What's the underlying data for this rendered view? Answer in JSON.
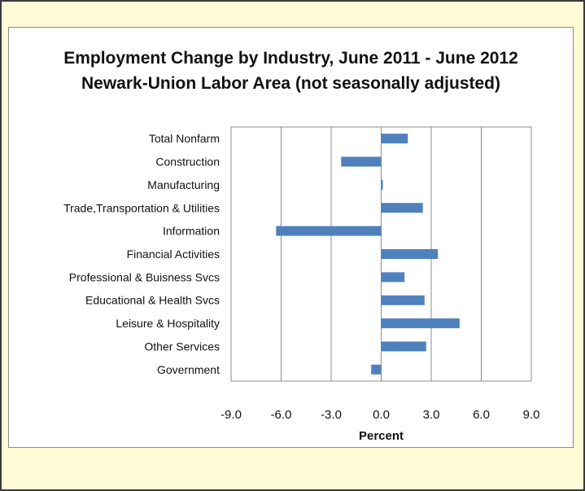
{
  "chart_data": {
    "type": "bar",
    "orientation": "horizontal",
    "title": "Employment Change by Industry, June 2011 - June 2012",
    "subtitle": "Newark-Union Labor Area (not seasonally adjusted)",
    "xlabel": "Percent",
    "ylabel": "",
    "xlim": [
      -9.0,
      9.0
    ],
    "xticks": [
      "-9.0",
      "-6.0",
      "-3.0",
      "0.0",
      "3.0",
      "6.0",
      "9.0"
    ],
    "xtick_values": [
      -9,
      -6,
      -3,
      0,
      3,
      6,
      9
    ],
    "grid": true,
    "legend": false,
    "bar_color": "#4f81bd",
    "categories": [
      "Total Nonfarm",
      "Construction",
      "Manufacturing",
      "Trade,Transportation & Utilities",
      "Information",
      "Financial Activities",
      "Professional & Buisness Svcs",
      "Educational & Health Svcs",
      "Leisure & Hospitality",
      "Other Services",
      "Government"
    ],
    "values": [
      1.6,
      -2.4,
      0.1,
      2.5,
      -6.3,
      3.4,
      1.4,
      2.6,
      4.7,
      2.7,
      -0.6
    ]
  }
}
